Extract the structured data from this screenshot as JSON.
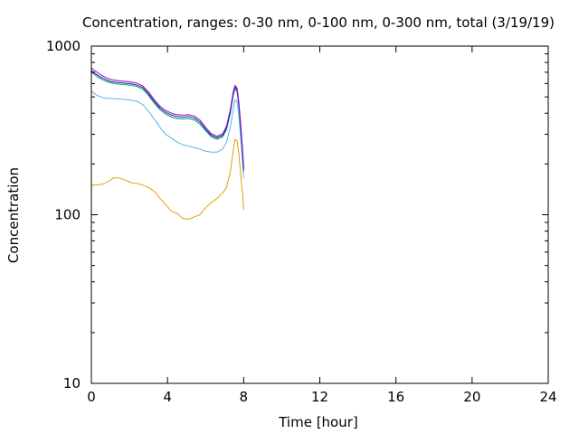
{
  "chart_data": {
    "type": "line",
    "title": "Concentration, ranges: 0-30 nm, 0-100 nm, 0-300 nm, total (3/19/19)",
    "xlabel": "Time [hour]",
    "ylabel": "Concentration",
    "xlim": [
      0,
      24
    ],
    "ylim": [
      10,
      1000
    ],
    "yscale": "log",
    "xticks": [
      0,
      4,
      8,
      12,
      16,
      20,
      24
    ],
    "xtick_labels": [
      "0",
      "4",
      "8",
      "12",
      "16",
      "20",
      "24"
    ],
    "yticks": [
      10,
      100,
      1000
    ],
    "ytick_labels": [
      "10",
      "100",
      "1000"
    ],
    "grid": false,
    "legend": "none",
    "series": [
      {
        "color": "#e6a000",
        "x": [
          0,
          0.3,
          0.6,
          0.9,
          1.2,
          1.5,
          1.8,
          2.1,
          2.4,
          2.7,
          3.0,
          3.3,
          3.6,
          3.9,
          4.2,
          4.5,
          4.8,
          5.1,
          5.4,
          5.7,
          6.0,
          6.3,
          6.6,
          6.9,
          7.1,
          7.3,
          7.45,
          7.55,
          7.65,
          7.75,
          7.85,
          7.95,
          8.0
        ],
        "y": [
          150,
          150,
          152,
          158,
          166,
          165,
          160,
          155,
          153,
          150,
          145,
          138,
          125,
          115,
          105,
          102,
          95,
          94,
          97,
          100,
          110,
          118,
          125,
          135,
          145,
          180,
          240,
          280,
          275,
          230,
          170,
          130,
          107
        ]
      },
      {
        "color": "#56b4e9",
        "x": [
          0,
          0.3,
          0.6,
          0.9,
          1.2,
          1.5,
          1.8,
          2.1,
          2.4,
          2.7,
          3.0,
          3.3,
          3.6,
          3.9,
          4.2,
          4.5,
          4.8,
          5.1,
          5.4,
          5.7,
          6.0,
          6.3,
          6.6,
          6.9,
          7.1,
          7.3,
          7.45,
          7.55,
          7.65,
          7.75,
          7.85,
          7.95,
          8.0
        ],
        "y": [
          540,
          510,
          495,
          490,
          488,
          486,
          482,
          478,
          470,
          450,
          410,
          370,
          330,
          300,
          285,
          270,
          260,
          255,
          250,
          245,
          238,
          235,
          235,
          245,
          270,
          330,
          420,
          480,
          470,
          380,
          280,
          200,
          165
        ]
      },
      {
        "color": "#009e73",
        "x": [
          0,
          0.3,
          0.6,
          0.9,
          1.2,
          1.5,
          1.8,
          2.1,
          2.4,
          2.7,
          3.0,
          3.3,
          3.6,
          3.9,
          4.2,
          4.5,
          4.8,
          5.1,
          5.4,
          5.7,
          6.0,
          6.3,
          6.6,
          6.9,
          7.1,
          7.3,
          7.45,
          7.55,
          7.65,
          7.75,
          7.85,
          7.95,
          8.0
        ],
        "y": [
          700,
          660,
          630,
          610,
          600,
          595,
          590,
          585,
          575,
          555,
          510,
          460,
          420,
          395,
          380,
          372,
          370,
          372,
          365,
          345,
          315,
          290,
          280,
          290,
          320,
          400,
          510,
          560,
          540,
          440,
          320,
          220,
          180
        ]
      },
      {
        "color": "#0a2a8a",
        "x": [
          0,
          0.3,
          0.6,
          0.9,
          1.2,
          1.5,
          1.8,
          2.1,
          2.4,
          2.7,
          3.0,
          3.3,
          3.6,
          3.9,
          4.2,
          4.5,
          4.8,
          5.1,
          5.4,
          5.7,
          6.0,
          6.3,
          6.6,
          6.9,
          7.1,
          7.3,
          7.45,
          7.55,
          7.65,
          7.75,
          7.85,
          7.95,
          8.0
        ],
        "y": [
          715,
          675,
          645,
          622,
          612,
          607,
          602,
          597,
          587,
          567,
          522,
          470,
          430,
          405,
          390,
          382,
          380,
          382,
          375,
          355,
          322,
          296,
          286,
          296,
          328,
          410,
          522,
          572,
          552,
          452,
          330,
          228,
          186
        ]
      },
      {
        "color": "#9400d3",
        "x": [
          0,
          0.3,
          0.6,
          0.9,
          1.2,
          1.5,
          1.8,
          2.1,
          2.4,
          2.7,
          3.0,
          3.3,
          3.6,
          3.9,
          4.2,
          4.5,
          4.8,
          5.1,
          5.4,
          5.7,
          6.0,
          6.3,
          6.6,
          6.9,
          7.1,
          7.3,
          7.45,
          7.55,
          7.65,
          7.75,
          7.85,
          7.95,
          8.0
        ],
        "y": [
          740,
          700,
          665,
          640,
          628,
          622,
          618,
          612,
          602,
          580,
          535,
          482,
          440,
          415,
          400,
          392,
          390,
          392,
          385,
          365,
          330,
          302,
          292,
          302,
          335,
          420,
          535,
          585,
          565,
          462,
          338,
          234,
          190
        ]
      }
    ]
  }
}
